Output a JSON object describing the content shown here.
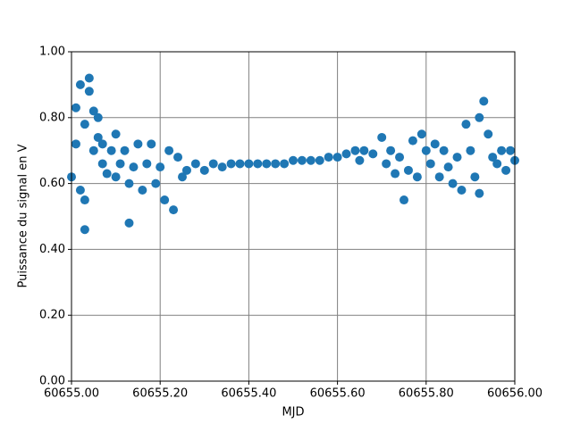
{
  "chart_data": {
    "type": "scatter",
    "xlabel": "MJD",
    "ylabel": "Puissance du signal en V",
    "color": "#1f77b4",
    "grid": true,
    "x": [
      60655.0,
      60655.01,
      60655.01,
      60655.02,
      60655.02,
      60655.03,
      60655.03,
      60655.03,
      60655.04,
      60655.04,
      60655.05,
      60655.05,
      60655.06,
      60655.06,
      60655.07,
      60655.07,
      60655.08,
      60655.09,
      60655.1,
      60655.1,
      60655.11,
      60655.12,
      60655.13,
      60655.13,
      60655.14,
      60655.15,
      60655.16,
      60655.17,
      60655.18,
      60655.19,
      60655.2,
      60655.21,
      60655.22,
      60655.23,
      60655.24,
      60655.25,
      60655.26,
      60655.28,
      60655.3,
      60655.32,
      60655.34,
      60655.36,
      60655.38,
      60655.4,
      60655.42,
      60655.44,
      60655.46,
      60655.48,
      60655.5,
      60655.52,
      60655.54,
      60655.56,
      60655.58,
      60655.6,
      60655.62,
      60655.64,
      60655.65,
      60655.66,
      60655.68,
      60655.7,
      60655.71,
      60655.72,
      60655.73,
      60655.74,
      60655.75,
      60655.76,
      60655.77,
      60655.78,
      60655.79,
      60655.8,
      60655.81,
      60655.82,
      60655.83,
      60655.84,
      60655.85,
      60655.86,
      60655.87,
      60655.88,
      60655.89,
      60655.9,
      60655.91,
      60655.92,
      60655.92,
      60655.93,
      60655.94,
      60655.95,
      60655.96,
      60655.97,
      60655.98,
      60655.99,
      60656.0
    ],
    "values": [
      0.62,
      0.72,
      0.83,
      0.9,
      0.58,
      0.46,
      0.55,
      0.78,
      0.92,
      0.88,
      0.7,
      0.82,
      0.74,
      0.8,
      0.66,
      0.72,
      0.63,
      0.7,
      0.62,
      0.75,
      0.66,
      0.7,
      0.48,
      0.6,
      0.65,
      0.72,
      0.58,
      0.66,
      0.72,
      0.6,
      0.65,
      0.55,
      0.7,
      0.52,
      0.68,
      0.62,
      0.64,
      0.66,
      0.64,
      0.66,
      0.65,
      0.66,
      0.66,
      0.66,
      0.66,
      0.66,
      0.66,
      0.66,
      0.67,
      0.67,
      0.67,
      0.67,
      0.68,
      0.68,
      0.69,
      0.7,
      0.67,
      0.7,
      0.69,
      0.74,
      0.66,
      0.7,
      0.63,
      0.68,
      0.55,
      0.64,
      0.73,
      0.62,
      0.75,
      0.7,
      0.66,
      0.72,
      0.62,
      0.7,
      0.65,
      0.6,
      0.68,
      0.58,
      0.78,
      0.7,
      0.62,
      0.8,
      0.57,
      0.85,
      0.75,
      0.68,
      0.66,
      0.7,
      0.64,
      0.7,
      0.67
    ],
    "xlim": [
      60655.0,
      60656.0
    ],
    "xticks": [
      {
        "value": 60655.0,
        "label": "60655.00"
      },
      {
        "value": 60655.2,
        "label": "60655.20"
      },
      {
        "value": 60655.4,
        "label": "60655.40"
      },
      {
        "value": 60655.6,
        "label": "60655.60"
      },
      {
        "value": 60655.8,
        "label": "60655.80"
      },
      {
        "value": 60656.0,
        "label": "60656.00"
      }
    ],
    "ylim": [
      0,
      1
    ],
    "yticks": [
      {
        "value": 0,
        "label": "0.00"
      },
      {
        "value": 0.2,
        "label": "0.20"
      },
      {
        "value": 0.4,
        "label": "0.40"
      },
      {
        "value": 0.6,
        "label": "0.60"
      },
      {
        "value": 0.8,
        "label": "0.80"
      },
      {
        "value": 1,
        "label": "1.00"
      }
    ]
  }
}
